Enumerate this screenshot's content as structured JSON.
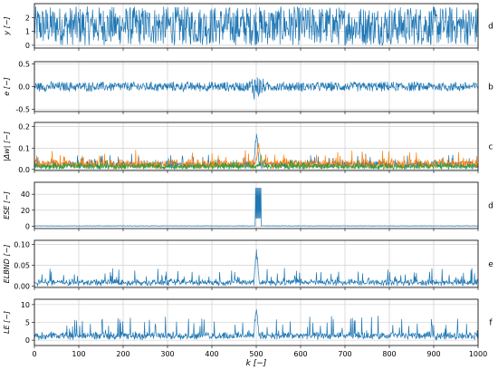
{
  "chart_data": [
    {
      "type": "line",
      "ylabel": "y [−]",
      "panel_label": "d",
      "xlim": [
        0,
        1000
      ],
      "ylim": [
        -0.2,
        3.0
      ],
      "yticks": [
        0,
        1,
        2
      ],
      "ytick_labels": [
        "0",
        "1",
        "2"
      ],
      "grid": true,
      "series": [
        {
          "style": "noisy-uniform",
          "low": 0.0,
          "high": 2.8,
          "n": 1000,
          "color": "#1f77b4"
        }
      ]
    },
    {
      "type": "line",
      "ylabel": "e [−]",
      "panel_label": "b",
      "xlim": [
        0,
        1000
      ],
      "ylim": [
        -0.55,
        0.55
      ],
      "yticks": [
        -0.5,
        0.0,
        0.5
      ],
      "ytick_labels": [
        "-0.5",
        "0.0",
        "0.5"
      ],
      "grid": true,
      "series": [
        {
          "style": "noisy-centered",
          "amplitude": 0.12,
          "burst_at": 500,
          "burst_amplitude": 0.42,
          "n": 1000,
          "color": "#1f77b4"
        }
      ]
    },
    {
      "type": "line",
      "ylabel": "|Δw| [−]",
      "panel_label": "c",
      "xlim": [
        0,
        1000
      ],
      "ylim": [
        -0.005,
        0.22
      ],
      "yticks": [
        0.0,
        0.1,
        0.2
      ],
      "ytick_labels": [
        "0.0",
        "0.1",
        "0.2"
      ],
      "grid": true,
      "series": [
        {
          "style": "noisy-positive",
          "base": 0.03,
          "spread": 0.05,
          "burst_at": 500,
          "burst_peak": 0.21,
          "n": 1000,
          "color": "#1f77b4"
        },
        {
          "style": "noisy-positive",
          "base": 0.035,
          "spread": 0.06,
          "burst_at": 505,
          "burst_peak": 0.16,
          "n": 1000,
          "color": "#ff7f0e"
        },
        {
          "style": "noisy-positive",
          "base": 0.02,
          "spread": 0.03,
          "burst_at": 510,
          "burst_peak": 0.07,
          "n": 1000,
          "color": "#2ca02c"
        }
      ]
    },
    {
      "type": "line",
      "ylabel": "ESE [−]",
      "panel_label": "d",
      "xlim": [
        0,
        1000
      ],
      "ylim": [
        -3,
        55
      ],
      "yticks": [
        0,
        20,
        40
      ],
      "ytick_labels": [
        "0",
        "20",
        "40"
      ],
      "grid": true,
      "series": [
        {
          "style": "spike",
          "baseline": 0.6,
          "spike_from": 498,
          "spike_to": 510,
          "spike_value": 48,
          "n": 1000,
          "color": "#1f77b4"
        }
      ]
    },
    {
      "type": "line",
      "ylabel": "ELBND [−]",
      "panel_label": "e",
      "xlim": [
        0,
        1000
      ],
      "ylim": [
        -0.003,
        0.11
      ],
      "yticks": [
        0.0,
        0.05,
        0.1
      ],
      "ytick_labels": [
        "0.00",
        "0.05",
        "0.10"
      ],
      "grid": true,
      "series": [
        {
          "style": "noisy-positive",
          "base": 0.008,
          "spread": 0.04,
          "burst_at": 500,
          "burst_peak": 0.1,
          "n": 1000,
          "color": "#1f77b4"
        }
      ]
    },
    {
      "type": "line",
      "ylabel": "LE [−]",
      "panel_label": "f",
      "xlim": [
        0,
        1000
      ],
      "ylim": [
        -1.5,
        11.5
      ],
      "yticks": [
        0,
        5,
        10
      ],
      "ytick_labels": [
        "0",
        "5",
        "10"
      ],
      "grid": true,
      "xlabel": "k [−]",
      "xticks": [
        0,
        100,
        200,
        300,
        400,
        500,
        600,
        700,
        800,
        900,
        1000
      ],
      "xtick_labels": [
        "0",
        "100",
        "200",
        "300",
        "400",
        "500",
        "600",
        "700",
        "800",
        "900",
        "1000"
      ],
      "series": [
        {
          "style": "noisy-positive",
          "base": 1.0,
          "spread": 6.0,
          "burst_at": 500,
          "burst_peak": 10.5,
          "n": 1000,
          "color": "#1f77b4"
        }
      ]
    }
  ]
}
